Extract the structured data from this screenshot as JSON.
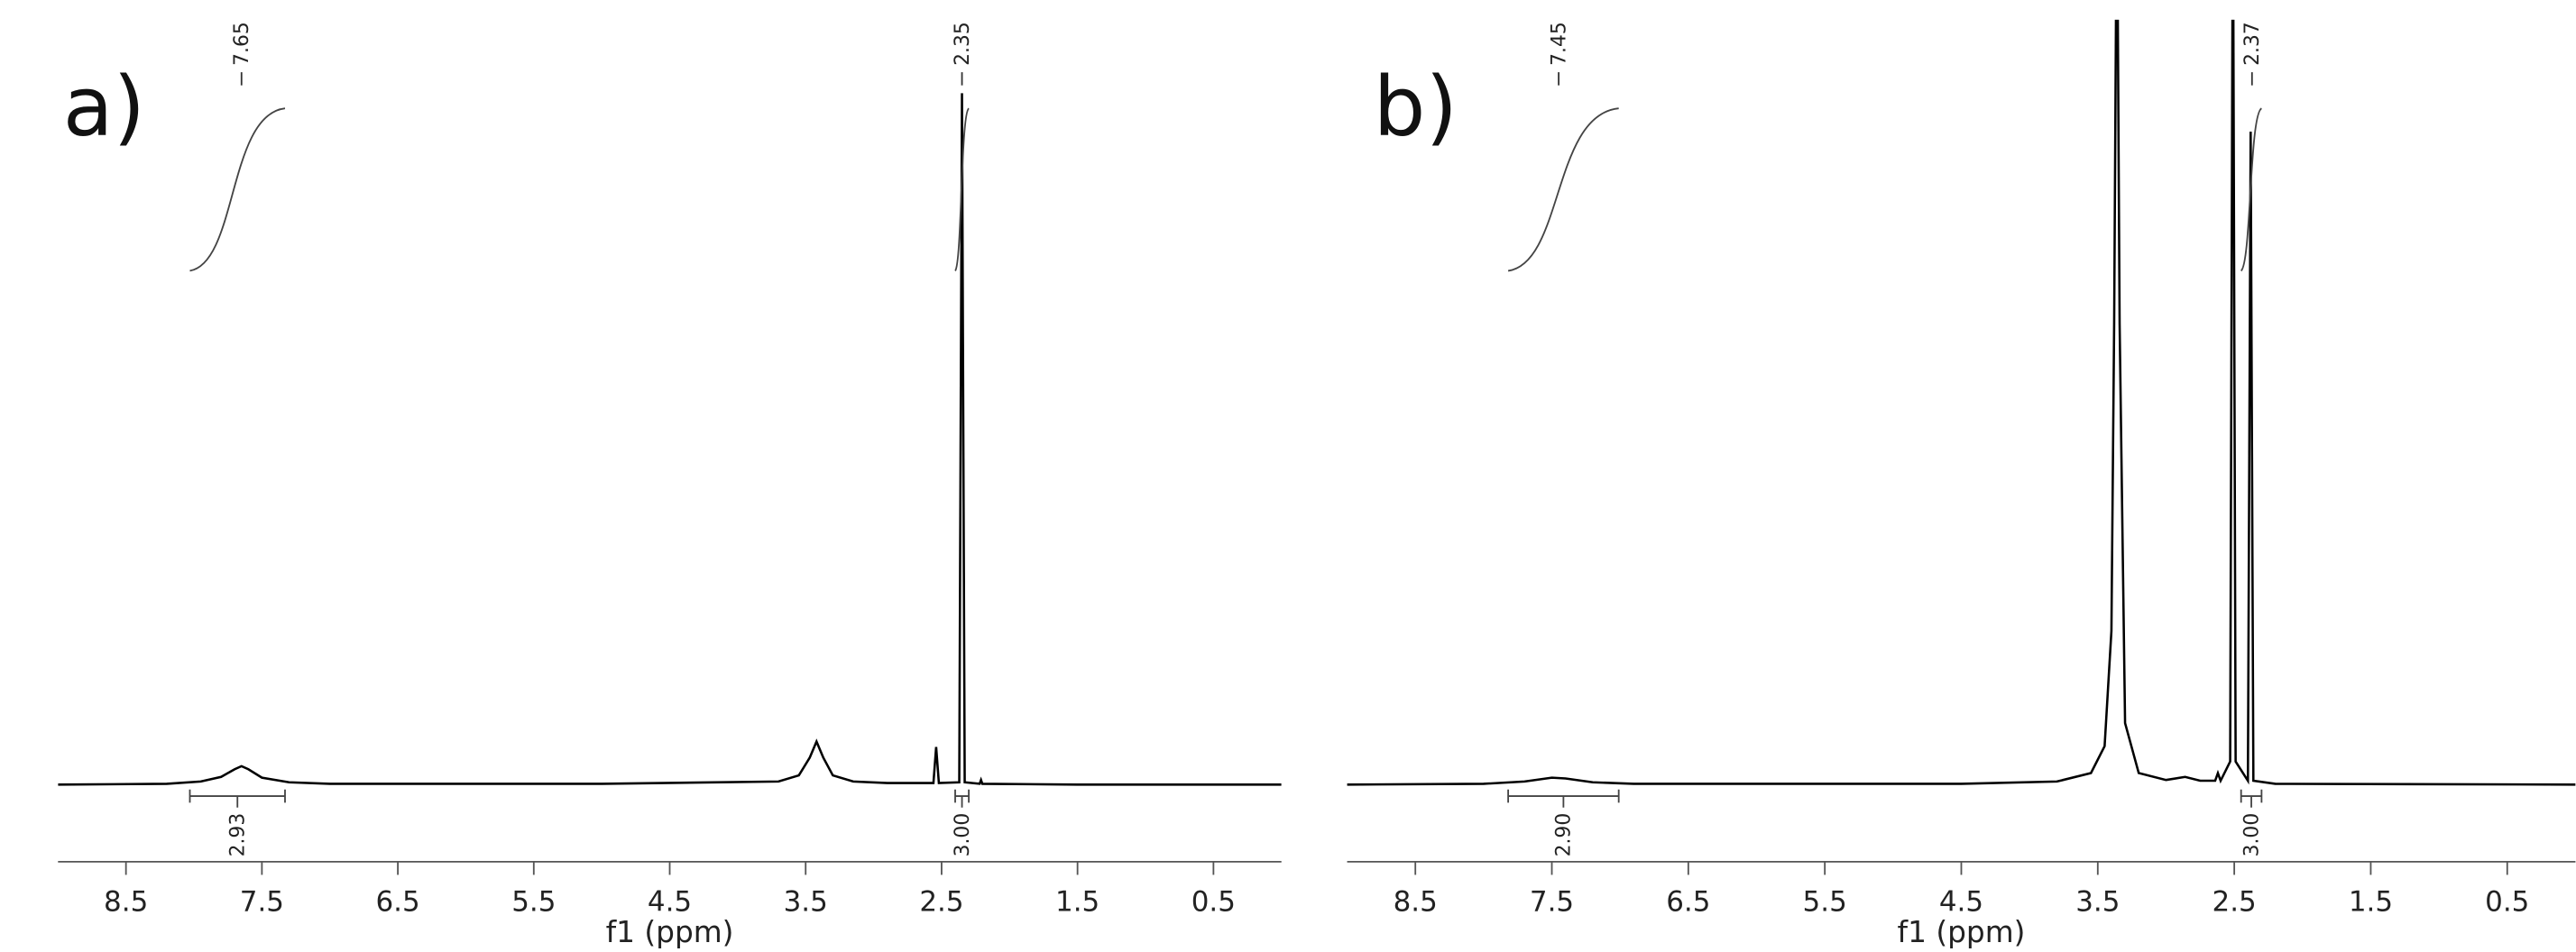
{
  "chart_data": [
    {
      "type": "line",
      "panel_label": "a)",
      "x_label": "f1 (ppm)",
      "color": "#000000",
      "xlim": [
        9.0,
        0.0
      ],
      "xticks": [
        8.5,
        7.5,
        6.5,
        5.5,
        4.5,
        3.5,
        2.5,
        1.5,
        0.5
      ],
      "ylim": [
        0,
        100
      ],
      "x": [
        9.0,
        8.2,
        7.95,
        7.8,
        7.7,
        7.65,
        7.6,
        7.5,
        7.3,
        7.0,
        5.0,
        3.7,
        3.55,
        3.47,
        3.42,
        3.37,
        3.3,
        3.15,
        2.9,
        2.56,
        2.54,
        2.52,
        2.37,
        2.35,
        2.33,
        2.22,
        2.21,
        2.2,
        1.5,
        0.0
      ],
      "values": [
        0,
        0.1,
        0.4,
        1.0,
        2.0,
        2.4,
        2.0,
        0.9,
        0.3,
        0.1,
        0.1,
        0.4,
        1.2,
        3.5,
        5.6,
        3.5,
        1.2,
        0.4,
        0.2,
        0.2,
        4.9,
        0.2,
        0.3,
        90,
        0.3,
        0.1,
        0.6,
        0.1,
        0,
        0
      ],
      "peak_labels": [
        7.65,
        2.35
      ],
      "integrals": [
        {
          "range": [
            8.03,
            7.33
          ],
          "value": 2.93,
          "label": "2.93"
        },
        {
          "range": [
            2.4,
            2.3
          ],
          "value": 3,
          "label": "3.00"
        }
      ]
    },
    {
      "type": "line",
      "panel_label": "b)",
      "x_label": "f1 (ppm)",
      "color": "#000000",
      "xlim": [
        9.0,
        0.0
      ],
      "xticks": [
        8.5,
        7.5,
        6.5,
        5.5,
        4.5,
        3.5,
        2.5,
        1.5,
        0.5
      ],
      "ylim": [
        0,
        100
      ],
      "x": [
        9.0,
        8.0,
        7.7,
        7.5,
        7.4,
        7.2,
        6.9,
        4.5,
        3.8,
        3.55,
        3.45,
        3.4,
        3.38,
        3.36,
        3.34,
        3.3,
        3.2,
        3.0,
        2.86,
        2.75,
        2.64,
        2.62,
        2.6,
        2.53,
        2.51,
        2.49,
        2.4,
        2.38,
        2.36,
        2.2,
        0.0
      ],
      "values": [
        0,
        0.1,
        0.4,
        0.9,
        0.8,
        0.3,
        0.1,
        0.1,
        0.4,
        1.5,
        5,
        20,
        60,
        120,
        60,
        8,
        1.5,
        0.6,
        1.0,
        0.5,
        0.5,
        1.5,
        0.5,
        3,
        120,
        3,
        0.5,
        85,
        0.5,
        0.1,
        0
      ],
      "peak_labels": [
        7.45,
        2.37
      ],
      "integrals": [
        {
          "range": [
            7.82,
            7.01
          ],
          "value": 2.9,
          "label": "2.90"
        },
        {
          "range": [
            2.45,
            2.3
          ],
          "value": 3,
          "label": "3.00"
        }
      ]
    }
  ]
}
